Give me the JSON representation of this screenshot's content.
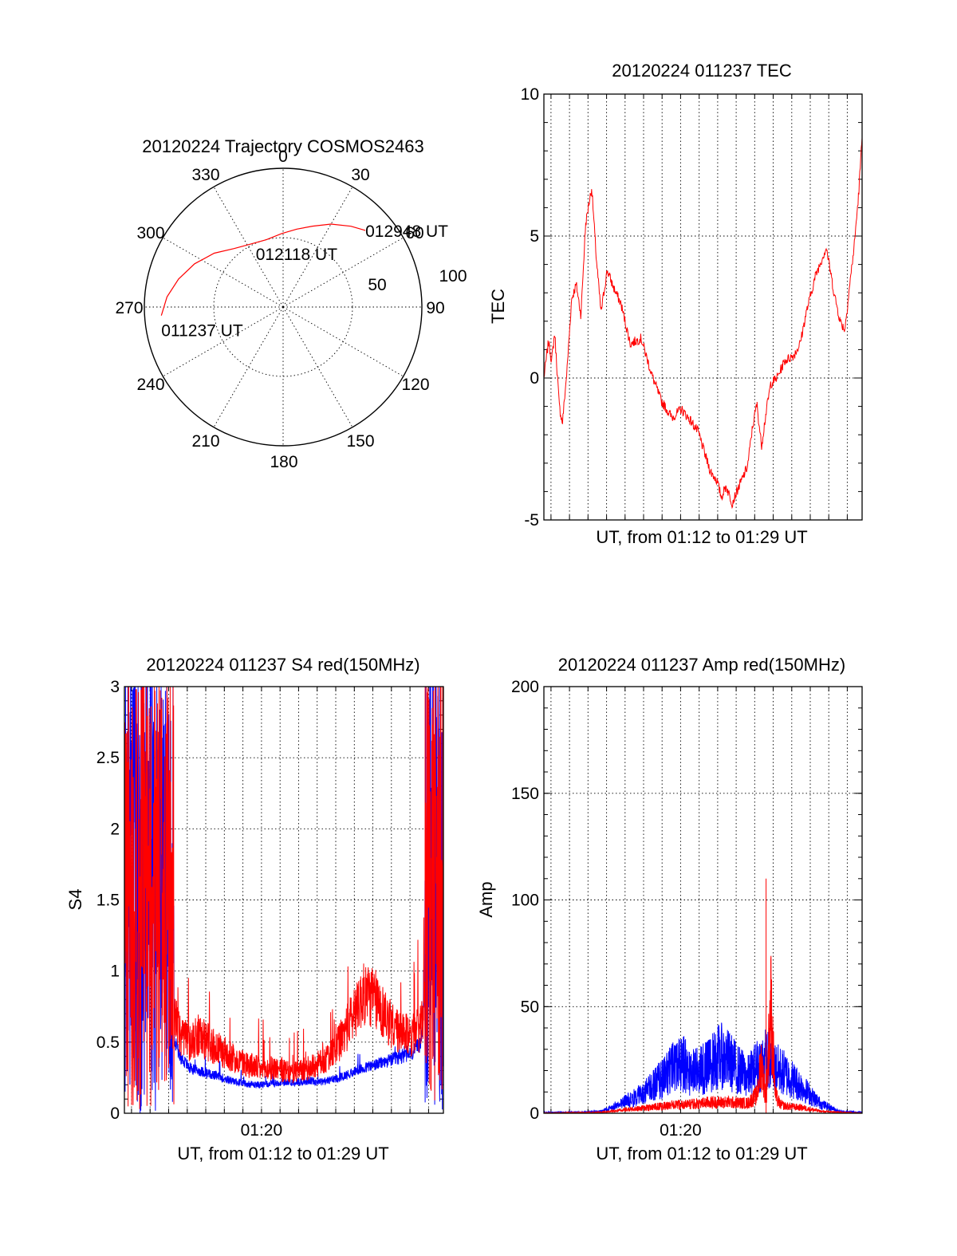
{
  "colors": {
    "red": "#ff0000",
    "blue": "#0000ff",
    "axis": "#000000"
  },
  "chart_data": [
    {
      "id": "trajectory",
      "type": "polar",
      "title": "20120224 Trajectory COSMOS2463",
      "azimuth_ticks": [
        "0",
        "30",
        "60",
        "90",
        "120",
        "150",
        "180",
        "210",
        "240",
        "270",
        "300",
        "330"
      ],
      "radial_ticks": [
        "50",
        "100"
      ],
      "rlim": [
        0,
        100
      ],
      "grid": true,
      "series": [
        {
          "color": "#ff0000",
          "points": [
            {
              "az": 266,
              "r": 88
            },
            {
              "az": 275,
              "r": 84
            },
            {
              "az": 285,
              "r": 78
            },
            {
              "az": 296,
              "r": 71
            },
            {
              "az": 308,
              "r": 63
            },
            {
              "az": 320,
              "r": 55
            },
            {
              "az": 333,
              "r": 51
            },
            {
              "az": 346,
              "r": 50
            },
            {
              "az": 359,
              "r": 53
            },
            {
              "az": 10,
              "r": 57
            },
            {
              "az": 20,
              "r": 62
            },
            {
              "az": 30,
              "r": 69
            },
            {
              "az": 40,
              "r": 76
            },
            {
              "az": 47,
              "r": 81
            }
          ]
        }
      ],
      "annotations": [
        {
          "text": "011237 UT",
          "az": 266,
          "r": 88
        },
        {
          "text": "012118 UT",
          "az": 333,
          "r": 51
        },
        {
          "text": "012948 UT",
          "az": 47,
          "r": 81
        }
      ]
    },
    {
      "id": "tec",
      "type": "line",
      "title": "20120224 011237 TEC",
      "xlabel": "UT, from 01:12 to 01:29 UT",
      "ylabel": "TEC",
      "xlim": [
        "01:12:37",
        "01:29:48"
      ],
      "ylim": [
        -5,
        10
      ],
      "yticks": [
        "-5",
        "0",
        "5",
        "10"
      ],
      "grid": true,
      "series": [
        {
          "color": "#ff0000",
          "x": [
            "01:12:37",
            "01:12:52",
            "01:13:02",
            "01:13:12",
            "01:13:27",
            "01:13:37",
            "01:13:52",
            "01:14:07",
            "01:14:22",
            "01:14:37",
            "01:14:52",
            "01:15:02",
            "01:15:12",
            "01:15:27",
            "01:15:42",
            "01:16:02",
            "01:16:22",
            "01:16:47",
            "01:17:17",
            "01:17:52",
            "01:18:27",
            "01:18:57",
            "01:19:32",
            "01:20:02",
            "01:20:32",
            "01:20:57",
            "01:21:22",
            "01:21:37",
            "01:21:57",
            "01:22:12",
            "01:22:27",
            "01:22:47",
            "01:23:02",
            "01:23:22",
            "01:23:37",
            "01:23:52",
            "01:24:07",
            "01:24:22",
            "01:24:37",
            "01:24:52",
            "01:25:12",
            "01:25:37",
            "01:26:07",
            "01:26:27",
            "01:26:47",
            "01:27:17",
            "01:27:52",
            "01:28:17",
            "01:28:37",
            "01:28:52",
            "01:29:07",
            "01:29:22",
            "01:29:37",
            "01:29:48"
          ],
          "values": [
            0.0,
            1.3,
            0.6,
            1.6,
            -1.0,
            -1.6,
            0.3,
            2.8,
            3.3,
            2.2,
            5.4,
            6.1,
            6.7,
            4.2,
            2.3,
            3.8,
            3.2,
            2.6,
            1.2,
            1.4,
            0.1,
            -0.8,
            -1.4,
            -1.1,
            -1.5,
            -1.9,
            -2.8,
            -3.3,
            -3.6,
            -4.2,
            -3.8,
            -4.4,
            -4.0,
            -3.5,
            -3.1,
            -1.8,
            -0.9,
            -2.4,
            -1.2,
            -0.2,
            0.0,
            0.6,
            0.8,
            1.2,
            2.3,
            3.6,
            4.6,
            3.0,
            2.0,
            1.7,
            3.2,
            4.6,
            6.5,
            8.5
          ]
        }
      ]
    },
    {
      "id": "s4",
      "type": "line",
      "title": "20120224 011237 S4 red(150MHz)",
      "xlabel": "UT, from 01:12 to 01:29 UT",
      "ylabel": "S4",
      "xticks": [
        "01:20"
      ],
      "xlim": [
        "01:12:37",
        "01:29:48"
      ],
      "ylim": [
        0,
        3
      ],
      "yticks": [
        "0",
        "0.5",
        "1",
        "1.5",
        "2",
        "2.5",
        "3"
      ],
      "grid": true,
      "series": [
        {
          "color": "#ff0000",
          "x": [
            "01:12:37",
            "01:13:07",
            "01:13:37",
            "01:14:07",
            "01:14:37",
            "01:15:07",
            "01:15:37",
            "01:16:07",
            "01:16:37",
            "01:17:07",
            "01:17:37",
            "01:18:07",
            "01:18:37",
            "01:19:07",
            "01:19:37",
            "01:20:07",
            "01:20:37",
            "01:21:07",
            "01:21:37",
            "01:22:07",
            "01:22:37",
            "01:23:07",
            "01:23:37",
            "01:24:07",
            "01:24:37",
            "01:25:07",
            "01:25:37",
            "01:26:07",
            "01:26:37",
            "01:27:07",
            "01:27:37",
            "01:28:07",
            "01:28:37",
            "01:29:07",
            "01:29:48"
          ],
          "values": [
            2.5,
            2.2,
            2.0,
            1.6,
            1.1,
            0.75,
            0.55,
            0.5,
            0.55,
            0.5,
            0.45,
            0.42,
            0.38,
            0.35,
            0.33,
            0.3,
            0.32,
            0.3,
            0.28,
            0.3,
            0.32,
            0.35,
            0.4,
            0.48,
            0.6,
            0.75,
            0.85,
            0.8,
            0.7,
            0.6,
            0.55,
            0.55,
            0.6,
            1.2,
            2.5
          ]
        },
        {
          "color": "#0000ff",
          "x": [
            "01:12:37",
            "01:13:07",
            "01:13:37",
            "01:14:07",
            "01:14:37",
            "01:15:07",
            "01:15:37",
            "01:16:07",
            "01:16:37",
            "01:17:07",
            "01:17:37",
            "01:18:07",
            "01:18:37",
            "01:19:07",
            "01:19:37",
            "01:20:07",
            "01:20:37",
            "01:21:07",
            "01:21:37",
            "01:22:07",
            "01:22:37",
            "01:23:07",
            "01:23:37",
            "01:24:07",
            "01:24:37",
            "01:25:07",
            "01:25:37",
            "01:26:07",
            "01:26:37",
            "01:27:07",
            "01:27:37",
            "01:28:07",
            "01:28:37",
            "01:29:07",
            "01:29:48"
          ],
          "values": [
            2.8,
            2.3,
            1.8,
            1.5,
            1.0,
            0.6,
            0.4,
            0.32,
            0.3,
            0.28,
            0.26,
            0.24,
            0.22,
            0.21,
            0.2,
            0.2,
            0.21,
            0.22,
            0.22,
            0.22,
            0.23,
            0.22,
            0.23,
            0.25,
            0.27,
            0.3,
            0.32,
            0.34,
            0.36,
            0.38,
            0.4,
            0.42,
            0.5,
            1.5,
            3.0
          ]
        }
      ]
    },
    {
      "id": "amp",
      "type": "line",
      "title": "20120224 011237 Amp red(150MHz)",
      "xlabel": "UT, from 01:12 to 01:29 UT",
      "ylabel": "Amp",
      "xticks": [
        "01:20"
      ],
      "xlim": [
        "01:12:37",
        "01:29:48"
      ],
      "ylim": [
        0,
        200
      ],
      "yticks": [
        "0",
        "50",
        "100",
        "150",
        "200"
      ],
      "grid": true,
      "series": [
        {
          "color": "#0000ff",
          "x": [
            "01:12:37",
            "01:13:37",
            "01:14:37",
            "01:15:37",
            "01:16:07",
            "01:16:37",
            "01:17:07",
            "01:17:37",
            "01:18:07",
            "01:18:37",
            "01:19:07",
            "01:19:37",
            "01:20:07",
            "01:20:37",
            "01:21:07",
            "01:21:37",
            "01:22:07",
            "01:22:37",
            "01:23:07",
            "01:23:37",
            "01:24:07",
            "01:24:37",
            "01:25:07",
            "01:25:37",
            "01:26:07",
            "01:26:37",
            "01:27:07",
            "01:27:37",
            "01:28:37",
            "01:29:48"
          ],
          "values": [
            0.5,
            0.5,
            0.6,
            1.0,
            2.5,
            5,
            7,
            9,
            12,
            16,
            20,
            25,
            28,
            22,
            24,
            27,
            32,
            29,
            24,
            20,
            26,
            30,
            25,
            22,
            18,
            14,
            9,
            5,
            1,
            0.5
          ]
        },
        {
          "color": "#ff0000",
          "x": [
            "01:12:37",
            "01:15:37",
            "01:16:37",
            "01:17:37",
            "01:18:37",
            "01:19:37",
            "01:20:37",
            "01:21:37",
            "01:22:37",
            "01:23:37",
            "01:24:07",
            "01:24:22",
            "01:24:37",
            "01:24:52",
            "01:25:07",
            "01:25:22",
            "01:25:37",
            "01:26:07",
            "01:26:37",
            "01:27:07",
            "01:27:37",
            "01:28:37",
            "01:29:48"
          ],
          "values": [
            0.2,
            0.5,
            1.5,
            2.5,
            3.5,
            4.5,
            5,
            6,
            6,
            5.5,
            10,
            28,
            8,
            60,
            10,
            5,
            4,
            3.5,
            3,
            2,
            1,
            0.5,
            0.2
          ]
        }
      ]
    }
  ]
}
